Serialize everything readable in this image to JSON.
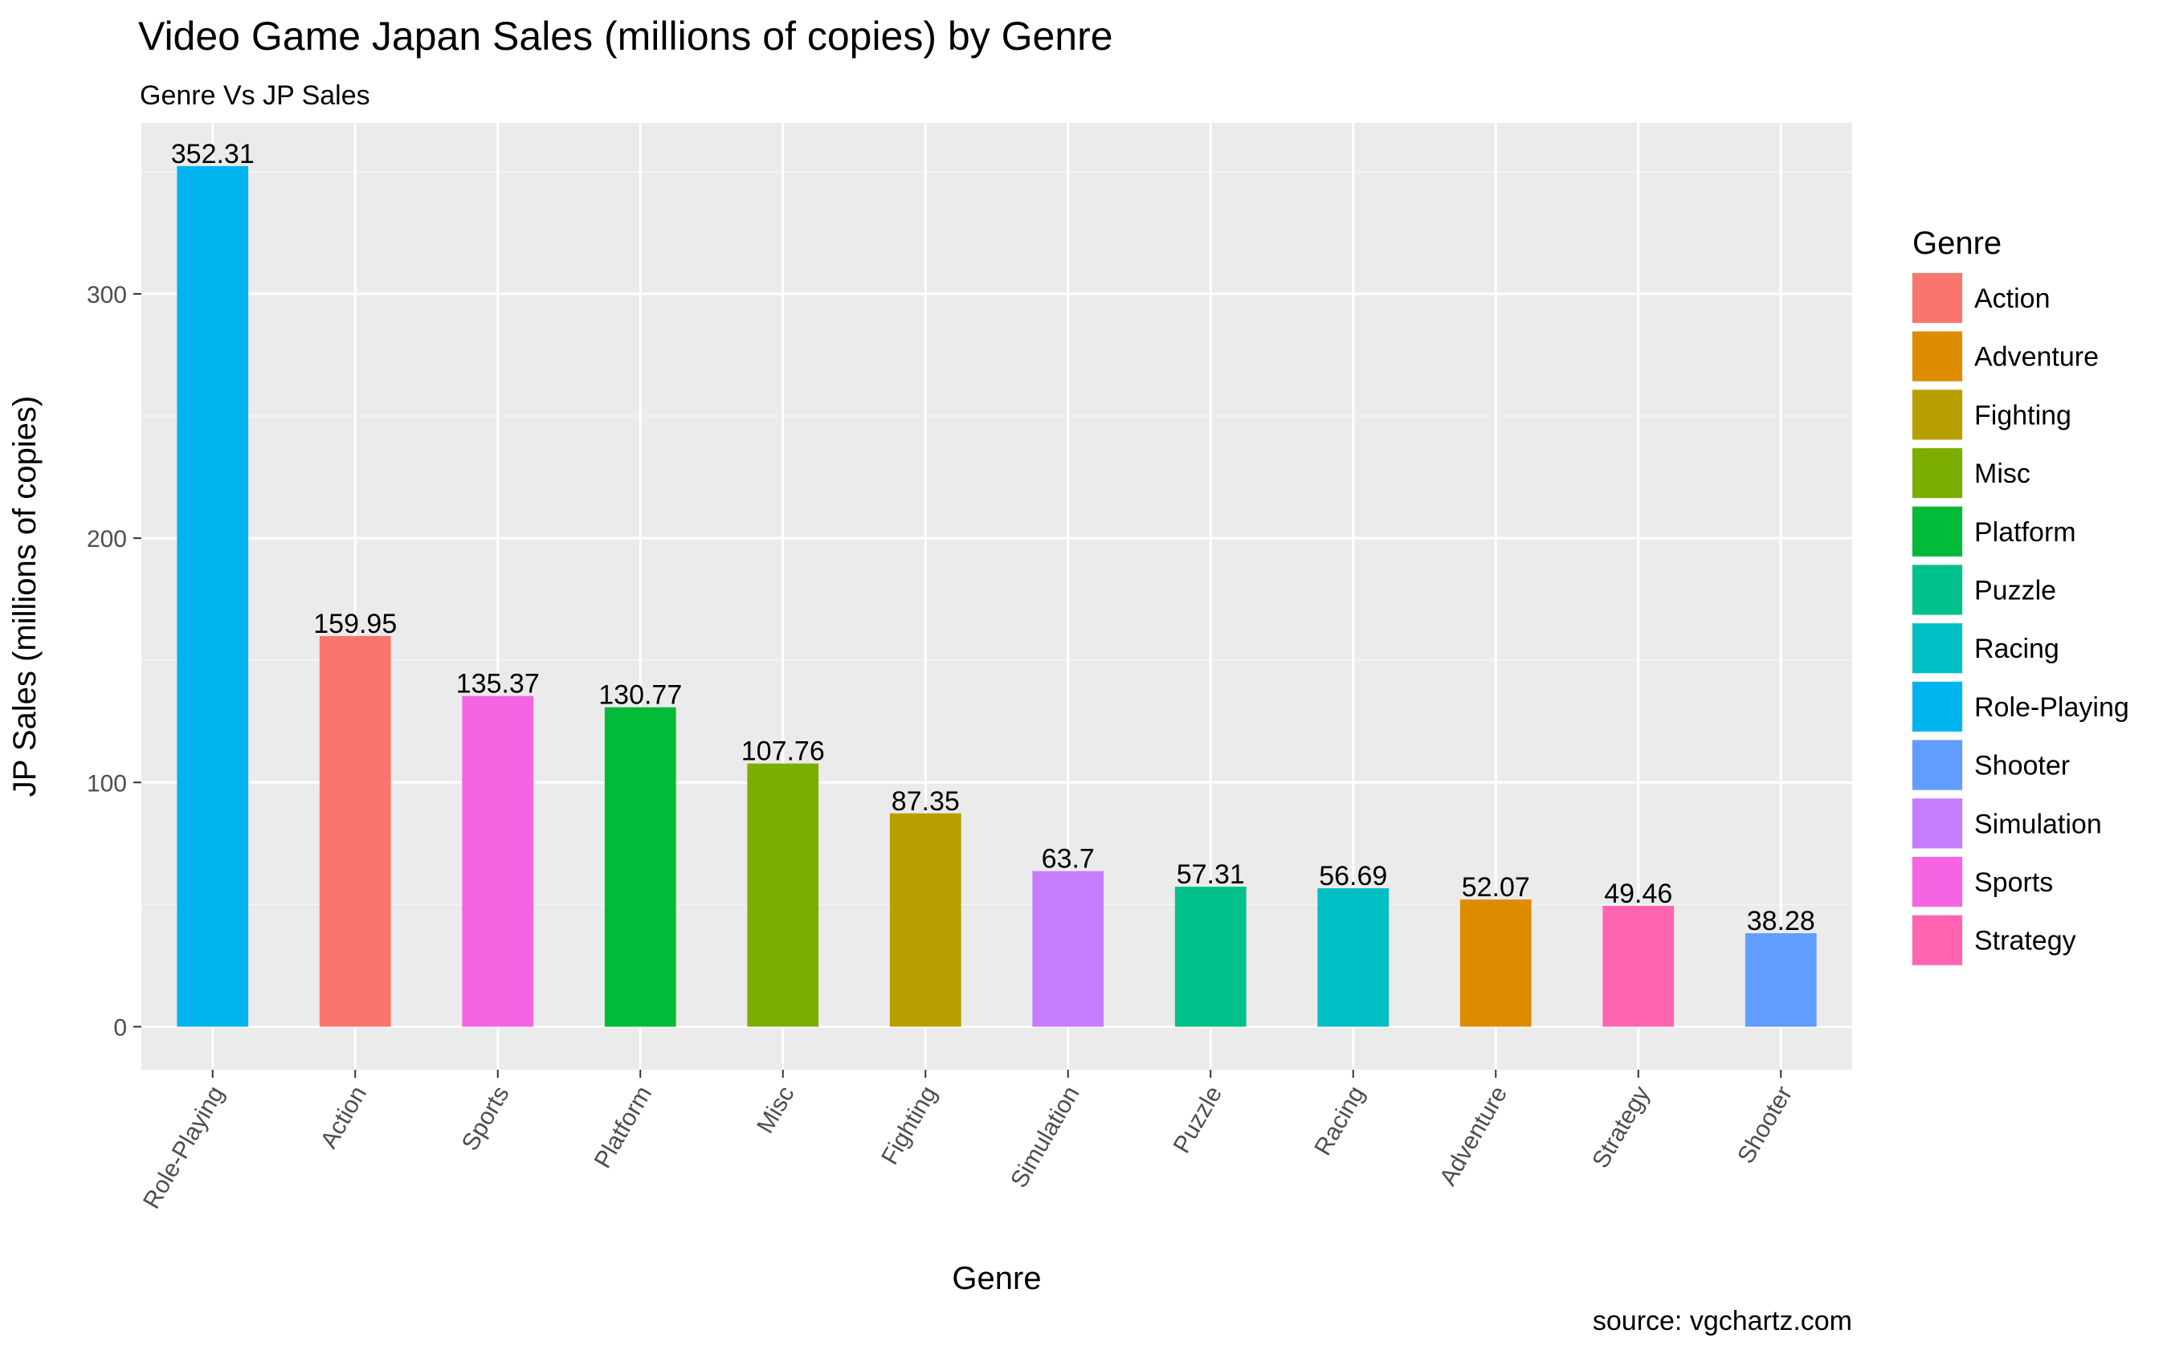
{
  "chart_data": {
    "type": "bar",
    "title": "Video Game Japan Sales (millions of copies) by Genre",
    "subtitle": "Genre Vs JP Sales",
    "xlabel": "Genre",
    "ylabel": "JP Sales (millions of copies)",
    "caption": "source: vgchartz.com",
    "categories": [
      "Role-Playing",
      "Action",
      "Sports",
      "Platform",
      "Misc",
      "Fighting",
      "Simulation",
      "Puzzle",
      "Racing",
      "Adventure",
      "Strategy",
      "Shooter"
    ],
    "values": [
      352.31,
      159.95,
      135.37,
      130.77,
      107.76,
      87.35,
      63.7,
      57.31,
      56.69,
      52.07,
      49.46,
      38.28
    ],
    "data_labels": [
      "352.31",
      "159.95",
      "135.37",
      "130.77",
      "107.76",
      "87.35",
      "63.7",
      "57.31",
      "56.69",
      "52.07",
      "49.46",
      "38.28"
    ],
    "ylim": [
      -17.6,
      370
    ],
    "yticks": [
      0,
      100,
      200,
      300
    ],
    "ytick_labels": [
      "0",
      "100",
      "200",
      "300"
    ],
    "grid": true,
    "x_tick_rotation_deg": 60,
    "legend": {
      "title": "Genre",
      "position": "right",
      "items": [
        {
          "label": "Action",
          "color": "#F8766D"
        },
        {
          "label": "Adventure",
          "color": "#DE8C00"
        },
        {
          "label": "Fighting",
          "color": "#B79F00"
        },
        {
          "label": "Misc",
          "color": "#7CAE00"
        },
        {
          "label": "Platform",
          "color": "#00BA38"
        },
        {
          "label": "Puzzle",
          "color": "#00C08B"
        },
        {
          "label": "Racing",
          "color": "#00BFC4"
        },
        {
          "label": "Role-Playing",
          "color": "#00B4F0"
        },
        {
          "label": "Shooter",
          "color": "#619CFF"
        },
        {
          "label": "Simulation",
          "color": "#C77CFF"
        },
        {
          "label": "Sports",
          "color": "#F564E3"
        },
        {
          "label": "Strategy",
          "color": "#FF64B0"
        }
      ]
    },
    "colors": {
      "panel_background": "#EBEBEB",
      "grid_major": "#FFFFFF",
      "grid_minor": "#F5F5F5"
    }
  }
}
